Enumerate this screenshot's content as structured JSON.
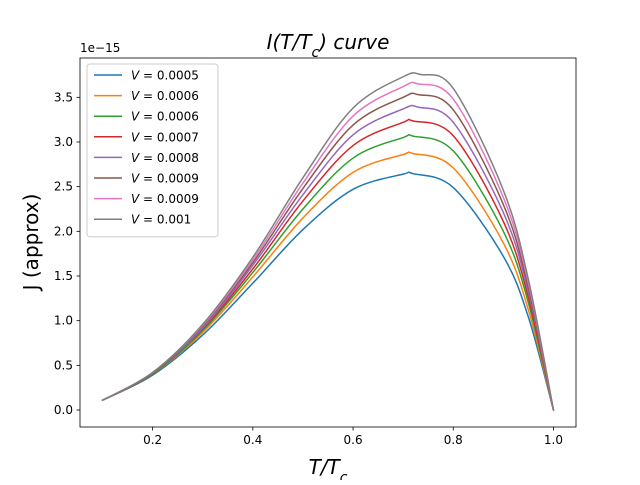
{
  "chart_data": {
    "type": "line",
    "title": "I(T/T_c) curve",
    "xlabel": "T/T_c",
    "ylabel": "J (approx)",
    "y_offset_label": "1e−15",
    "y_scale_exponent": -15,
    "xlim": [
      0.055,
      1.045
    ],
    "ylim": [
      -0.19,
      3.94
    ],
    "x_ticks": [
      0.2,
      0.4,
      0.6,
      0.8,
      1.0
    ],
    "x_tick_labels": [
      "0.2",
      "0.4",
      "0.6",
      "0.8",
      "1.0"
    ],
    "y_ticks": [
      0.0,
      0.5,
      1.0,
      1.5,
      2.0,
      2.5,
      3.0,
      3.5
    ],
    "y_tick_labels": [
      "0.0",
      "0.5",
      "1.0",
      "1.5",
      "2.0",
      "2.5",
      "3.0",
      "3.5"
    ],
    "grid": false,
    "legend_position": "upper-left",
    "series": [
      {
        "name": "V = 0.0005",
        "color": "#1f77b4",
        "x": [
          0.1,
          0.2,
          0.3,
          0.4,
          0.5,
          0.6,
          0.7,
          0.72,
          0.8,
          0.9,
          0.95,
          1.0
        ],
        "y": [
          0.11,
          0.39,
          0.84,
          1.42,
          2.02,
          2.47,
          2.64,
          2.645,
          2.49,
          1.72,
          1.04,
          0.0
        ]
      },
      {
        "name": "V = 0.0006",
        "color": "#ff7f0e",
        "x": [
          0.1,
          0.2,
          0.3,
          0.4,
          0.5,
          0.6,
          0.7,
          0.72,
          0.8,
          0.9,
          0.95,
          1.0
        ],
        "y": [
          0.11,
          0.4,
          0.87,
          1.49,
          2.15,
          2.66,
          2.86,
          2.87,
          2.71,
          1.87,
          1.12,
          0.0
        ]
      },
      {
        "name": "V = 0.0006",
        "color": "#2ca02c",
        "x": [
          0.1,
          0.2,
          0.3,
          0.4,
          0.5,
          0.6,
          0.7,
          0.72,
          0.8,
          0.9,
          0.95,
          1.0
        ],
        "y": [
          0.11,
          0.4,
          0.89,
          1.54,
          2.25,
          2.82,
          3.05,
          3.065,
          2.9,
          2.0,
          1.2,
          0.0
        ]
      },
      {
        "name": "V = 0.0007",
        "color": "#d62728",
        "x": [
          0.1,
          0.2,
          0.3,
          0.4,
          0.5,
          0.6,
          0.7,
          0.72,
          0.8,
          0.9,
          0.95,
          1.0
        ],
        "y": [
          0.11,
          0.41,
          0.91,
          1.58,
          2.34,
          2.96,
          3.22,
          3.235,
          3.07,
          2.11,
          1.26,
          0.0
        ]
      },
      {
        "name": "V = 0.0008",
        "color": "#9467bd",
        "x": [
          0.1,
          0.2,
          0.3,
          0.4,
          0.5,
          0.6,
          0.7,
          0.73,
          0.8,
          0.9,
          0.95,
          1.0
        ],
        "y": [
          0.11,
          0.41,
          0.92,
          1.62,
          2.41,
          3.08,
          3.37,
          3.39,
          3.22,
          2.21,
          1.32,
          0.0
        ]
      },
      {
        "name": "V = 0.0009",
        "color": "#8c564b",
        "x": [
          0.1,
          0.2,
          0.3,
          0.4,
          0.5,
          0.6,
          0.7,
          0.73,
          0.8,
          0.9,
          0.95,
          1.0
        ],
        "y": [
          0.11,
          0.41,
          0.94,
          1.65,
          2.48,
          3.19,
          3.5,
          3.53,
          3.36,
          2.3,
          1.37,
          0.0
        ]
      },
      {
        "name": "V = 0.0009",
        "color": "#e377c2",
        "x": [
          0.1,
          0.2,
          0.3,
          0.4,
          0.5,
          0.6,
          0.7,
          0.73,
          0.8,
          0.9,
          0.95,
          1.0
        ],
        "y": [
          0.11,
          0.42,
          0.95,
          1.68,
          2.54,
          3.29,
          3.62,
          3.65,
          3.48,
          2.38,
          1.42,
          0.0
        ]
      },
      {
        "name": "V = 0.001",
        "color": "#7f7f7f",
        "x": [
          0.1,
          0.2,
          0.3,
          0.4,
          0.5,
          0.6,
          0.7,
          0.735,
          0.8,
          0.9,
          0.95,
          1.0
        ],
        "y": [
          0.11,
          0.42,
          0.96,
          1.71,
          2.6,
          3.38,
          3.73,
          3.755,
          3.6,
          2.46,
          1.46,
          0.0
        ]
      }
    ]
  }
}
